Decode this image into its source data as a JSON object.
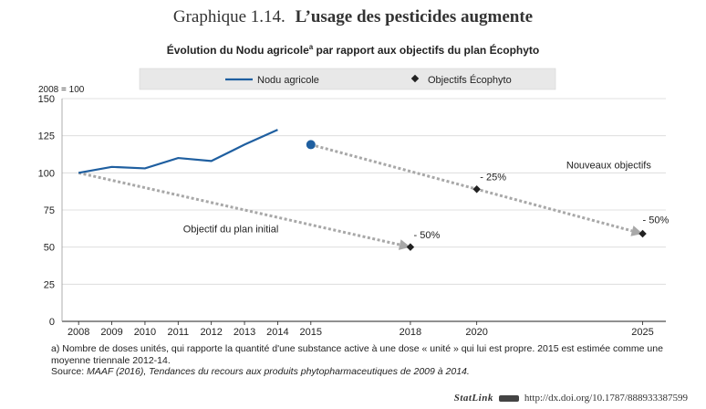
{
  "figure": {
    "number": "Graphique 1.14.",
    "title": "L’usage des pesticides augmente",
    "subtitle_pre": "Évolution du Nodu agricole",
    "subtitle_sup": "a",
    "subtitle_post": " par rapport aux objectifs du plan Écophyto"
  },
  "chart_data": {
    "type": "line",
    "ylabel": "2008 = 100",
    "ylim": [
      0,
      150
    ],
    "yticks": [
      0,
      25,
      50,
      75,
      100,
      125,
      150
    ],
    "xticks": [
      2008,
      2009,
      2010,
      2011,
      2012,
      2013,
      2014,
      2015,
      2018,
      2020,
      2025
    ],
    "legend_position": "top",
    "series": [
      {
        "name": "Nodu agricole",
        "color": "#1f5fa0",
        "x": [
          2008,
          2009,
          2010,
          2011,
          2012,
          2013,
          2014
        ],
        "y": [
          100,
          104,
          103,
          110,
          108,
          119,
          129
        ]
      },
      {
        "name": "Objectifs Écophyto",
        "color": "#222222",
        "x": [
          2018,
          2020,
          2025
        ],
        "y": [
          50,
          89,
          59
        ]
      }
    ],
    "point_2015": {
      "x": 2015,
      "y": 119,
      "color": "#1f5fa0"
    },
    "arrows": [
      {
        "from": [
          2008,
          100
        ],
        "to": [
          2018,
          50
        ]
      },
      {
        "from": [
          2015,
          119
        ],
        "to": [
          2025,
          59
        ]
      }
    ],
    "annotations": [
      {
        "text": "Objectif du plan initial",
        "x": 2011.15,
        "y": 60
      },
      {
        "text": "- 50%",
        "x": 2018.1,
        "y": 56
      },
      {
        "text": "- 25%",
        "x": 2020.1,
        "y": 95
      },
      {
        "text": "Nouveaux objectifs",
        "x": 2022.7,
        "y": 103
      },
      {
        "text": "- 50%",
        "x": 2025.0,
        "y": 66
      }
    ]
  },
  "notes": {
    "note_a": "a) Nombre de doses unités, qui rapporte la quantité d'une substance active à une dose « unité » qui lui est propre. 2015 est estimée comme une moyenne triennale 2012-14.",
    "source_label": "Source:",
    "source_text": " MAAF (2016), Tendances du recours aux produits phytopharmaceutiques de 2009 à 2014."
  },
  "statlink": {
    "brand": "StatLink",
    "url": "http://dx.doi.org/10.1787/888933387599"
  }
}
